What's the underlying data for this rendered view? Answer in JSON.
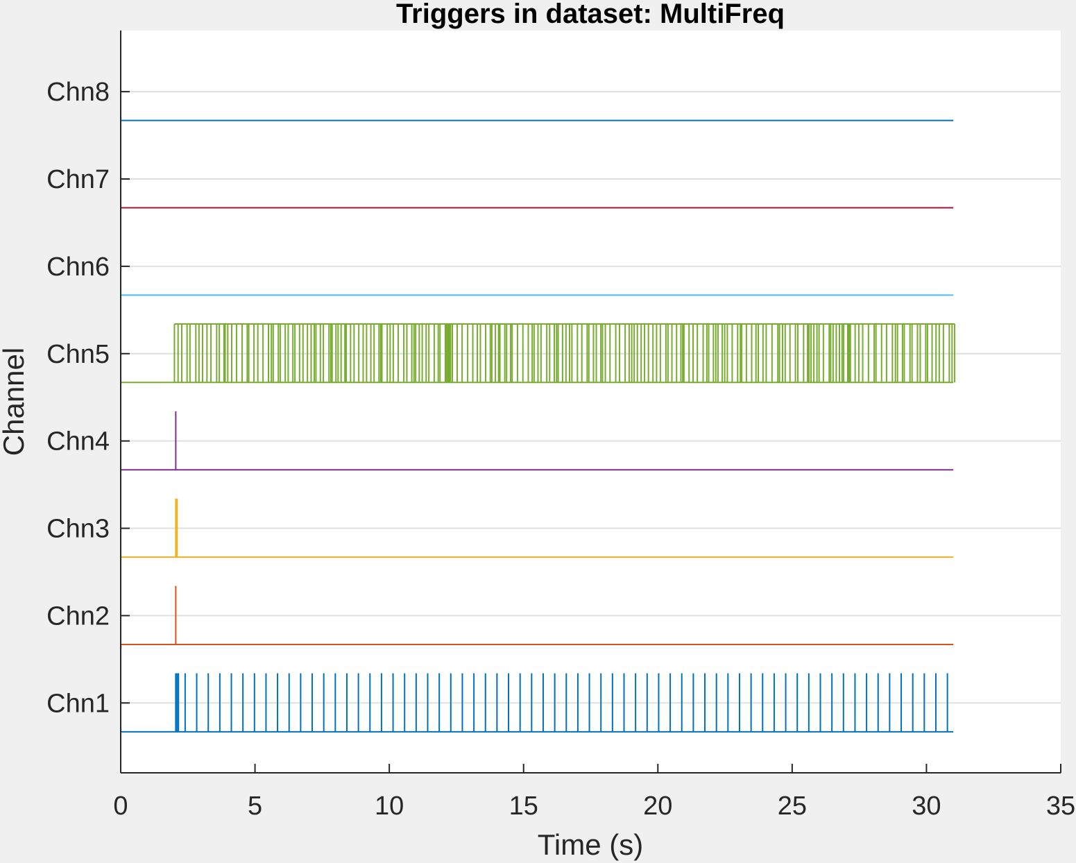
{
  "chart_data": {
    "type": "line",
    "title": "Triggers in dataset: MultiFreq",
    "xlabel": "Time (s)",
    "ylabel": "Channel",
    "xlim": [
      0,
      35
    ],
    "x_ticks": [
      0,
      5,
      10,
      15,
      20,
      25,
      30,
      35
    ],
    "x_tick_labels": [
      "0",
      "5",
      "10",
      "15",
      "20",
      "25",
      "30",
      "35"
    ],
    "ylim": [
      0.2,
      8.7
    ],
    "y_ticks": [
      1,
      2,
      3,
      4,
      5,
      6,
      7,
      8
    ],
    "y_tick_labels": [
      "Chn1",
      "Chn2",
      "Chn3",
      "Chn4",
      "Chn5",
      "Chn6",
      "Chn7",
      "Chn8"
    ],
    "grid": "horizontal",
    "signal_end": 31,
    "pulse_height": 0.67,
    "series": [
      {
        "name": "Chn1",
        "channel": 1,
        "color": "#0072bd",
        "events": [
          2.05,
          2.1,
          2.15,
          2.4,
          2.83,
          3.26,
          3.69,
          4.12,
          4.55,
          4.98,
          5.41,
          5.84,
          6.27,
          6.7,
          7.13,
          7.56,
          7.99,
          8.42,
          8.85,
          9.28,
          9.71,
          10.14,
          10.57,
          11.0,
          11.43,
          11.86,
          12.29,
          12.72,
          13.15,
          13.58,
          14.01,
          14.44,
          14.87,
          15.3,
          15.73,
          16.16,
          16.59,
          17.02,
          17.45,
          17.88,
          18.31,
          18.74,
          19.17,
          19.6,
          20.03,
          20.46,
          20.89,
          21.32,
          21.75,
          22.18,
          22.61,
          23.04,
          23.47,
          23.9,
          24.33,
          24.76,
          25.19,
          25.62,
          26.05,
          26.48,
          26.91,
          27.34,
          27.77,
          28.2,
          28.63,
          29.06,
          29.49,
          29.92,
          30.35,
          30.78
        ]
      },
      {
        "name": "Chn2",
        "channel": 2,
        "color": "#d95319",
        "events": [
          2.05
        ]
      },
      {
        "name": "Chn3",
        "channel": 3,
        "color": "#edb120",
        "events": [
          2.05,
          2.1
        ]
      },
      {
        "name": "Chn4",
        "channel": 4,
        "color": "#7e2f8e",
        "events": [
          2.05
        ]
      },
      {
        "name": "Chn5",
        "channel": 5,
        "color": "#77ac30",
        "burst": {
          "start": 2.0,
          "end": 31.05,
          "min_interval": 0.04,
          "max_interval": 0.22
        }
      },
      {
        "name": "Chn6",
        "channel": 6,
        "color": "#4dbeee",
        "events": []
      },
      {
        "name": "Chn7",
        "channel": 7,
        "color": "#a2142f",
        "events": []
      },
      {
        "name": "Chn8",
        "channel": 8,
        "color": "#0072bd",
        "events": []
      }
    ]
  }
}
